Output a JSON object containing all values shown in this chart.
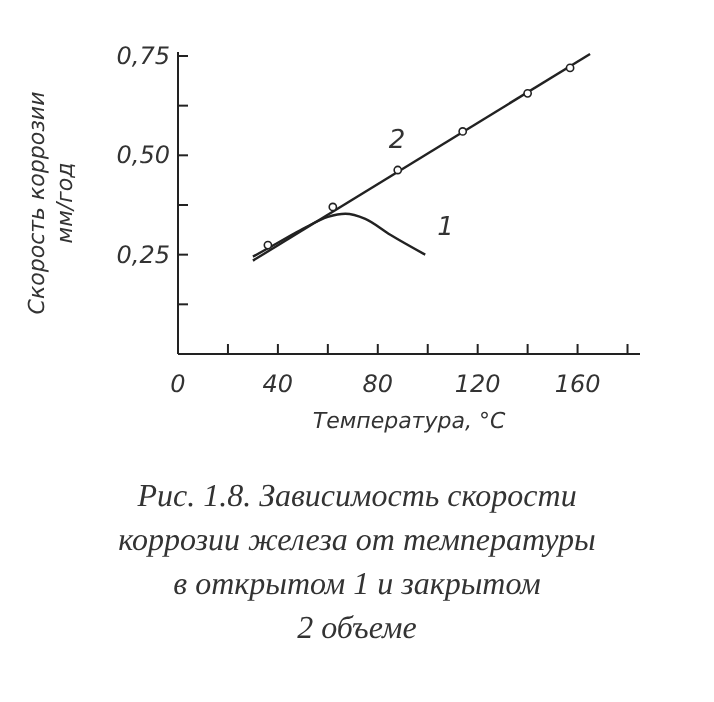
{
  "chart_data": {
    "type": "line",
    "xlabel": "Температура, °C",
    "ylabel": "Скорость коррозии мм/год",
    "xlim": [
      0,
      185
    ],
    "ylim": [
      0,
      0.76
    ],
    "xticks": [
      0,
      {
        "value": 20,
        "label": null
      },
      40,
      {
        "value": 60,
        "label": null
      },
      80,
      {
        "value": 100,
        "label": null
      },
      120,
      {
        "value": 140,
        "label": null
      },
      160,
      {
        "value": 180,
        "label": null
      }
    ],
    "yticks": [
      {
        "value": 0.125,
        "label": null
      },
      {
        "value": 0.25,
        "label": "0,25"
      },
      {
        "value": 0.375,
        "label": null
      },
      {
        "value": 0.5,
        "label": "0,50"
      },
      {
        "value": 0.625,
        "label": null
      },
      {
        "value": 0.75,
        "label": "0,75"
      }
    ],
    "grid": false,
    "series": [
      {
        "name": "1",
        "color": "#222222",
        "marker": "none",
        "x": [
          30,
          40,
          50,
          60,
          67,
          75,
          85,
          99
        ],
        "values": [
          0.245,
          0.28,
          0.315,
          0.345,
          0.353,
          0.34,
          0.3,
          0.25
        ]
      },
      {
        "name": "2",
        "color": "#222222",
        "marker": "none",
        "x": [
          30,
          165
        ],
        "values": [
          0.235,
          0.755
        ]
      },
      {
        "type": "scatter",
        "color": "#222222",
        "marker": "circle",
        "x": [
          36,
          62,
          88,
          114,
          140,
          157
        ],
        "values": [
          0.274,
          0.37,
          0.463,
          0.56,
          0.656,
          0.72
        ]
      }
    ],
    "annotations": [
      "Рис. 1.8. Зависимость скорости",
      "коррозии железа от температуры",
      "в открытом 1 и закрытом",
      "2 объеме"
    ]
  }
}
